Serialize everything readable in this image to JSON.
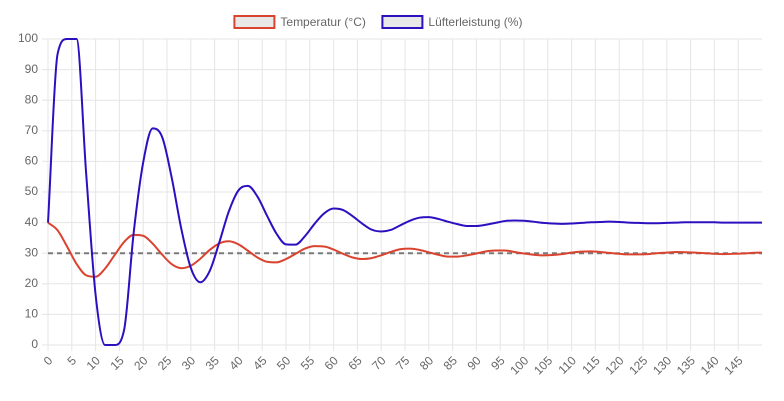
{
  "chart_data": {
    "type": "line",
    "x": [
      0,
      2,
      4,
      6,
      8,
      10,
      12,
      14,
      16,
      18,
      20,
      22,
      24,
      26,
      28,
      30,
      32,
      34,
      36,
      38,
      40,
      42,
      44,
      46,
      48,
      50,
      52,
      54,
      56,
      58,
      60,
      62,
      64,
      66,
      68,
      70,
      72,
      74,
      76,
      78,
      80,
      82,
      84,
      86,
      88,
      90,
      92,
      94,
      96,
      98,
      100,
      102,
      104,
      106,
      108,
      110,
      112,
      114,
      116,
      118,
      120,
      122,
      124,
      126,
      128,
      130,
      132,
      134,
      136,
      138,
      140,
      142,
      144,
      146,
      148,
      150
    ],
    "series": [
      {
        "name": "Temperatur (°C)",
        "color": "#d9432f",
        "values": [
          40,
          37.5,
          32.2,
          26.5,
          22.8,
          22.3,
          25.0,
          29.4,
          33.7,
          36.0,
          35.7,
          33.1,
          29.5,
          26.4,
          25.1,
          25.9,
          28.2,
          31.1,
          33.2,
          33.9,
          32.9,
          30.8,
          28.6,
          27.2,
          27.0,
          28.1,
          29.8,
          31.5,
          32.3,
          32.2,
          31.2,
          29.8,
          28.6,
          28.1,
          28.4,
          29.3,
          30.4,
          31.3,
          31.5,
          31.1,
          30.3,
          29.5,
          28.9,
          28.9,
          29.3,
          29.9,
          30.6,
          30.9,
          30.9,
          30.4,
          29.9,
          29.5,
          29.3,
          29.4,
          29.7,
          30.2,
          30.5,
          30.6,
          30.4,
          30.1,
          29.8,
          29.6,
          29.6,
          29.7,
          30.0,
          30.2,
          30.4,
          30.3,
          30.2,
          30.0,
          29.8,
          29.7,
          29.8,
          29.9,
          30.1,
          30.2
        ]
      },
      {
        "name": "Lüfterleistung (%)",
        "color": "#2b10c0",
        "values": [
          40,
          95,
          100,
          100,
          56.4,
          16.4,
          0,
          0,
          5,
          36.7,
          59.7,
          70.8,
          67.9,
          54.6,
          38,
          25.2,
          20.5,
          24.3,
          33.6,
          43.7,
          50.5,
          52,
          48.5,
          42.3,
          36.4,
          32.9,
          32.8,
          35.6,
          39.6,
          43,
          44.6,
          44.1,
          42.1,
          39.7,
          37.7,
          37.1,
          37.6,
          39.1,
          40.6,
          41.6,
          41.8,
          41.2,
          40.3,
          39.5,
          38.9,
          38.9,
          39.3,
          39.9,
          40.5,
          40.7,
          40.6,
          40.3,
          39.9,
          39.7,
          39.6,
          39.7,
          39.9,
          40.1,
          40.2,
          40.3,
          40.2,
          40,
          39.9,
          39.8,
          39.8,
          39.9,
          40,
          40.1,
          40.1,
          40.1,
          40.1,
          40,
          40,
          40,
          40,
          40
        ]
      }
    ],
    "reference_line": {
      "value": 30,
      "color": "#7a7a7a"
    },
    "xlim": [
      0,
      150
    ],
    "xticks": [
      0,
      5,
      10,
      15,
      20,
      25,
      30,
      35,
      40,
      45,
      50,
      55,
      60,
      65,
      70,
      75,
      80,
      85,
      90,
      95,
      100,
      105,
      110,
      115,
      120,
      125,
      130,
      135,
      140,
      145
    ],
    "ylim": [
      0,
      100
    ],
    "yticks": [
      0,
      10,
      20,
      30,
      40,
      50,
      60,
      70,
      80,
      90,
      100
    ],
    "grid": true,
    "legend": "top"
  }
}
